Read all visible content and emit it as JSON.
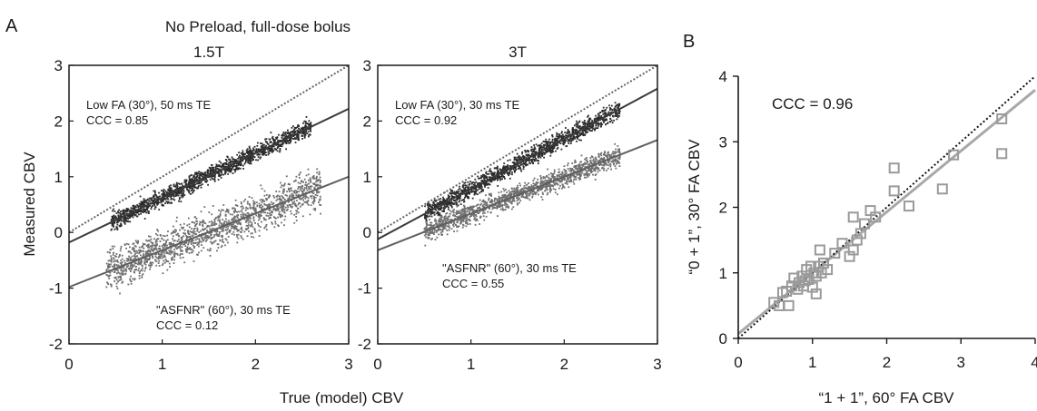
{
  "figure": {
    "panel_a_letter": "A",
    "panel_b_letter": "B",
    "panel_a_title": "No Preload, full-dose bolus",
    "panel_a_xlabel": "True (model) CBV",
    "panel_a_ylabel": "Measured CBV"
  },
  "colors": {
    "dark_points": "#2b2b2b",
    "gray_points": "#6e6e6e",
    "dark_line": "#3a3a3a",
    "gray_line": "#5f5f5f",
    "identity_line": "#111111",
    "b_markers": "#9a9a9a",
    "b_fit": "#a8a8a8"
  },
  "chart_data": [
    {
      "type": "scatter",
      "title": "1.5T",
      "xlim": [
        0,
        3
      ],
      "ylim": [
        -2,
        3
      ],
      "xticks": [
        0,
        1,
        2,
        3
      ],
      "yticks": [
        -2,
        -1,
        0,
        1,
        2,
        3
      ],
      "series": [
        {
          "label": "Low FA (30°), 50 ms TE",
          "ccc_label": "CCC = 0.85",
          "fit": {
            "slope": 0.8,
            "intercept": -0.18
          },
          "x_range": [
            0.45,
            2.6
          ],
          "spread": 0.14,
          "n": 1500
        },
        {
          "label": "\"ASFNR\" (60°), 30 ms TE",
          "ccc_label": "CCC = 0.12",
          "fit": {
            "slope": 0.66,
            "intercept": -0.98
          },
          "x_range": [
            0.4,
            2.7
          ],
          "spread": 0.32,
          "n": 1600
        }
      ],
      "identity_line": true
    },
    {
      "type": "scatter",
      "title": "3T",
      "xlim": [
        0,
        3
      ],
      "ylim": [
        -2,
        3
      ],
      "xticks": [
        0,
        1,
        2,
        3
      ],
      "yticks": [
        -2,
        -1,
        0,
        1,
        2,
        3
      ],
      "series": [
        {
          "label": "Low FA (30°), 30 ms TE",
          "ccc_label": "CCC = 0.92",
          "fit": {
            "slope": 0.9,
            "intercept": -0.12
          },
          "x_range": [
            0.5,
            2.6
          ],
          "spread": 0.14,
          "n": 1400
        },
        {
          "label": "\"ASFNR\" (60°), 30 ms TE",
          "ccc_label": "CCC = 0.55",
          "fit": {
            "slope": 0.66,
            "intercept": -0.32
          },
          "x_range": [
            0.5,
            2.6
          ],
          "spread": 0.17,
          "n": 1400
        }
      ],
      "identity_line": true
    },
    {
      "type": "scatter",
      "xlabel": "“1 + 1”, 60° FA CBV",
      "ylabel": "“0 + 1”, 30° FA CBV",
      "xlim": [
        0,
        4
      ],
      "ylim": [
        0,
        4
      ],
      "xticks": [
        0,
        1,
        2,
        3,
        4
      ],
      "yticks": [
        0,
        1,
        2,
        3,
        4
      ],
      "annotation": "CCC = 0.96",
      "fit": {
        "slope": 0.93,
        "intercept": 0.07
      },
      "identity_line": true,
      "points": [
        [
          0.48,
          0.55
        ],
        [
          0.55,
          0.5
        ],
        [
          0.6,
          0.7
        ],
        [
          0.65,
          0.72
        ],
        [
          0.68,
          0.5
        ],
        [
          0.72,
          0.8
        ],
        [
          0.75,
          0.92
        ],
        [
          0.8,
          0.75
        ],
        [
          0.82,
          0.85
        ],
        [
          0.86,
          0.95
        ],
        [
          0.88,
          0.8
        ],
        [
          0.9,
          0.88
        ],
        [
          0.92,
          1.05
        ],
        [
          0.95,
          0.9
        ],
        [
          0.98,
          1.1
        ],
        [
          1.0,
          0.78
        ],
        [
          1.02,
          1.0
        ],
        [
          1.05,
          0.95
        ],
        [
          1.05,
          0.68
        ],
        [
          1.08,
          1.1
        ],
        [
          1.1,
          1.35
        ],
        [
          1.12,
          1.0
        ],
        [
          1.15,
          1.15
        ],
        [
          1.2,
          1.05
        ],
        [
          1.3,
          1.3
        ],
        [
          1.4,
          1.45
        ],
        [
          1.5,
          1.25
        ],
        [
          1.55,
          1.35
        ],
        [
          1.55,
          1.85
        ],
        [
          1.6,
          1.5
        ],
        [
          1.65,
          1.6
        ],
        [
          1.7,
          1.75
        ],
        [
          1.78,
          1.95
        ],
        [
          1.85,
          1.85
        ],
        [
          2.1,
          2.6
        ],
        [
          2.1,
          2.25
        ],
        [
          2.3,
          2.02
        ],
        [
          2.75,
          2.28
        ],
        [
          2.9,
          2.8
        ],
        [
          3.55,
          3.35
        ],
        [
          3.55,
          2.82
        ]
      ]
    }
  ]
}
